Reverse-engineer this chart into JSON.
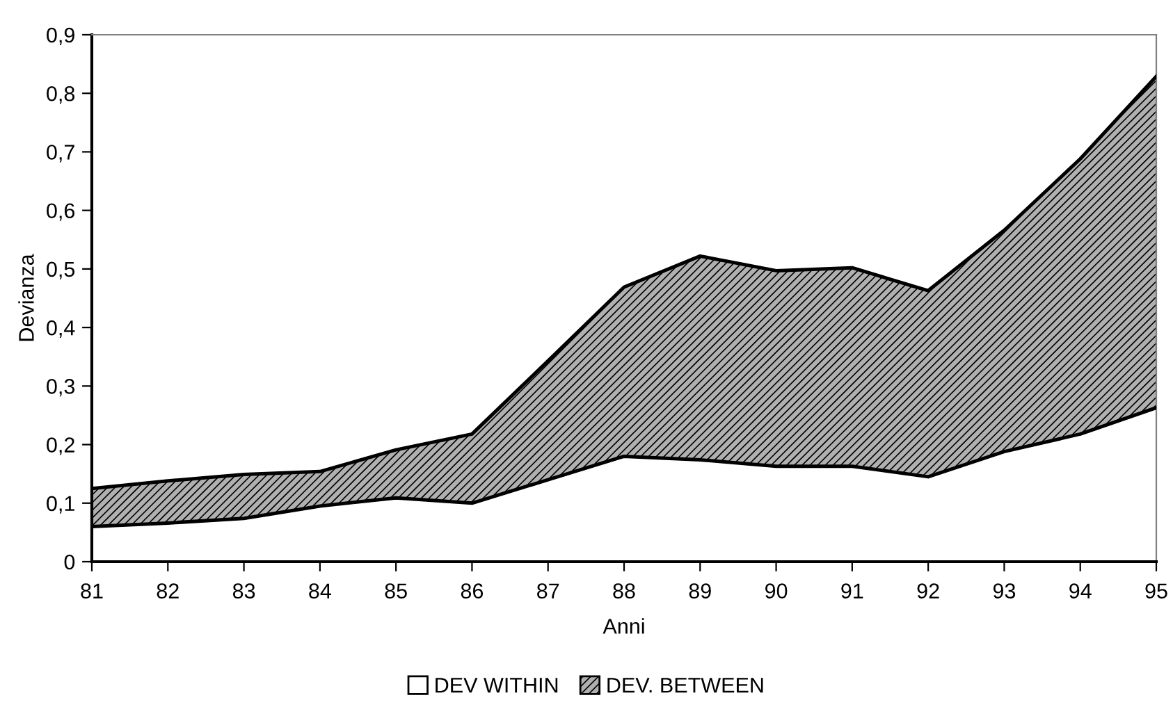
{
  "chart_data": {
    "type": "area",
    "stacked": true,
    "xlabel": "Anni",
    "ylabel": "Devianza",
    "categories": [
      "81",
      "82",
      "83",
      "84",
      "85",
      "86",
      "87",
      "88",
      "89",
      "90",
      "91",
      "92",
      "93",
      "94",
      "95"
    ],
    "series": [
      {
        "name": "DEV WITHIN",
        "color": "#ffffff",
        "values": [
          0.06,
          0.066,
          0.074,
          0.095,
          0.109,
          0.1,
          0.14,
          0.18,
          0.174,
          0.163,
          0.163,
          0.145,
          0.188,
          0.218,
          0.263
        ]
      },
      {
        "name": "DEV. BETWEEN",
        "color": "#b0b0b0",
        "values": [
          0.065,
          0.072,
          0.075,
          0.059,
          0.082,
          0.118,
          0.203,
          0.289,
          0.348,
          0.334,
          0.339,
          0.318,
          0.378,
          0.47,
          0.566
        ]
      }
    ],
    "ylim": [
      0,
      0.9
    ],
    "yticks": [
      {
        "value": 0,
        "label": "0"
      },
      {
        "value": 0.1,
        "label": "0,1"
      },
      {
        "value": 0.2,
        "label": "0,2"
      },
      {
        "value": 0.3,
        "label": "0,3"
      },
      {
        "value": 0.4,
        "label": "0,4"
      },
      {
        "value": 0.5,
        "label": "0,5"
      },
      {
        "value": 0.6,
        "label": "0,6"
      },
      {
        "value": 0.7,
        "label": "0,7"
      },
      {
        "value": 0.8,
        "label": "0,8"
      },
      {
        "value": 0.9,
        "label": "0,9"
      }
    ],
    "grid": false,
    "legend": "bottom"
  }
}
